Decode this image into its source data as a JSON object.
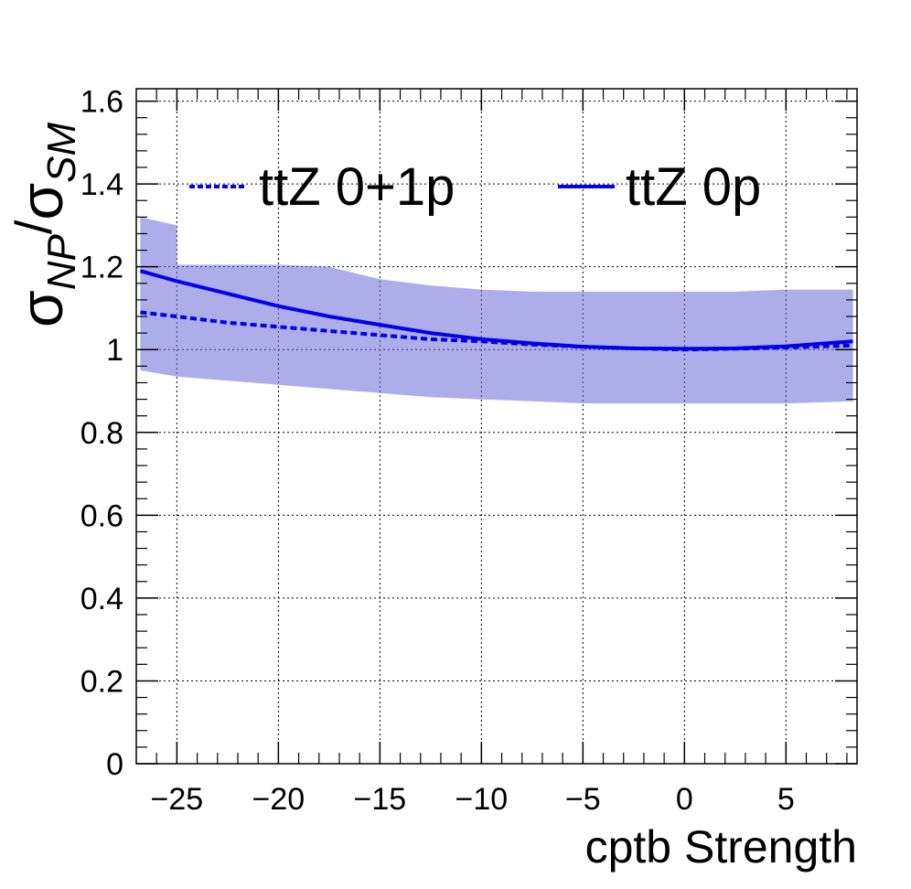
{
  "chart_data": {
    "type": "line",
    "xlabel": "cptb Strength",
    "ylabel": {
      "symbol": "σ",
      "numerator_sub": "NP",
      "slash": "/",
      "denominator_sub": "SM"
    },
    "xlim": [
      -27,
      8.5
    ],
    "ylim": [
      0,
      1.63
    ],
    "x_ticks": [
      -25,
      -20,
      -15,
      -10,
      -5,
      0,
      5
    ],
    "x_tick_labels": [
      "−25",
      "−20",
      "−15",
      "−10",
      "−5",
      "0",
      "5"
    ],
    "y_ticks": [
      0,
      0.2,
      0.4,
      0.6,
      0.8,
      1,
      1.2,
      1.4,
      1.6
    ],
    "y_tick_labels": [
      "0",
      "0.2",
      "0.4",
      "0.6",
      "0.8",
      "1",
      "1.2",
      "1.4",
      "1.6"
    ],
    "grid": true,
    "legend_position": "top",
    "colors": {
      "series": "#0000ee",
      "band": "#6a6ad8"
    },
    "series": [
      {
        "name": "ttZ 0+1p",
        "style": "dashed",
        "x": [
          -26.8,
          -25,
          -22.5,
          -20,
          -17.5,
          -15,
          -12.5,
          -10,
          -7.5,
          -5,
          -2.5,
          0,
          2.5,
          5,
          8.3
        ],
        "y": [
          1.09,
          1.08,
          1.065,
          1.055,
          1.045,
          1.035,
          1.025,
          1.02,
          1.012,
          1.007,
          1.003,
          1.0,
          1.002,
          1.005,
          1.01
        ]
      },
      {
        "name": "ttZ 0p",
        "style": "solid",
        "x": [
          -26.8,
          -25,
          -22.5,
          -20,
          -17.5,
          -15,
          -12.5,
          -10,
          -7.5,
          -5,
          -2.5,
          0,
          2.5,
          5,
          8.3
        ],
        "y": [
          1.19,
          1.165,
          1.135,
          1.105,
          1.08,
          1.06,
          1.04,
          1.025,
          1.015,
          1.007,
          1.003,
          1.002,
          1.003,
          1.008,
          1.02
        ]
      }
    ],
    "uncertainty_band": {
      "x": [
        -26.8,
        -25.0,
        -24.99,
        -22.5,
        -20,
        -17.5,
        -15,
        -12.5,
        -10,
        -7.5,
        -5,
        -2.5,
        0,
        2.5,
        5,
        8.3
      ],
      "upper": [
        1.32,
        1.3,
        1.205,
        1.205,
        1.205,
        1.2,
        1.17,
        1.155,
        1.145,
        1.14,
        1.14,
        1.14,
        1.14,
        1.14,
        1.145,
        1.145
      ],
      "lower": [
        0.95,
        0.935,
        0.935,
        0.925,
        0.915,
        0.905,
        0.895,
        0.885,
        0.88,
        0.875,
        0.87,
        0.87,
        0.87,
        0.87,
        0.87,
        0.875
      ]
    }
  }
}
